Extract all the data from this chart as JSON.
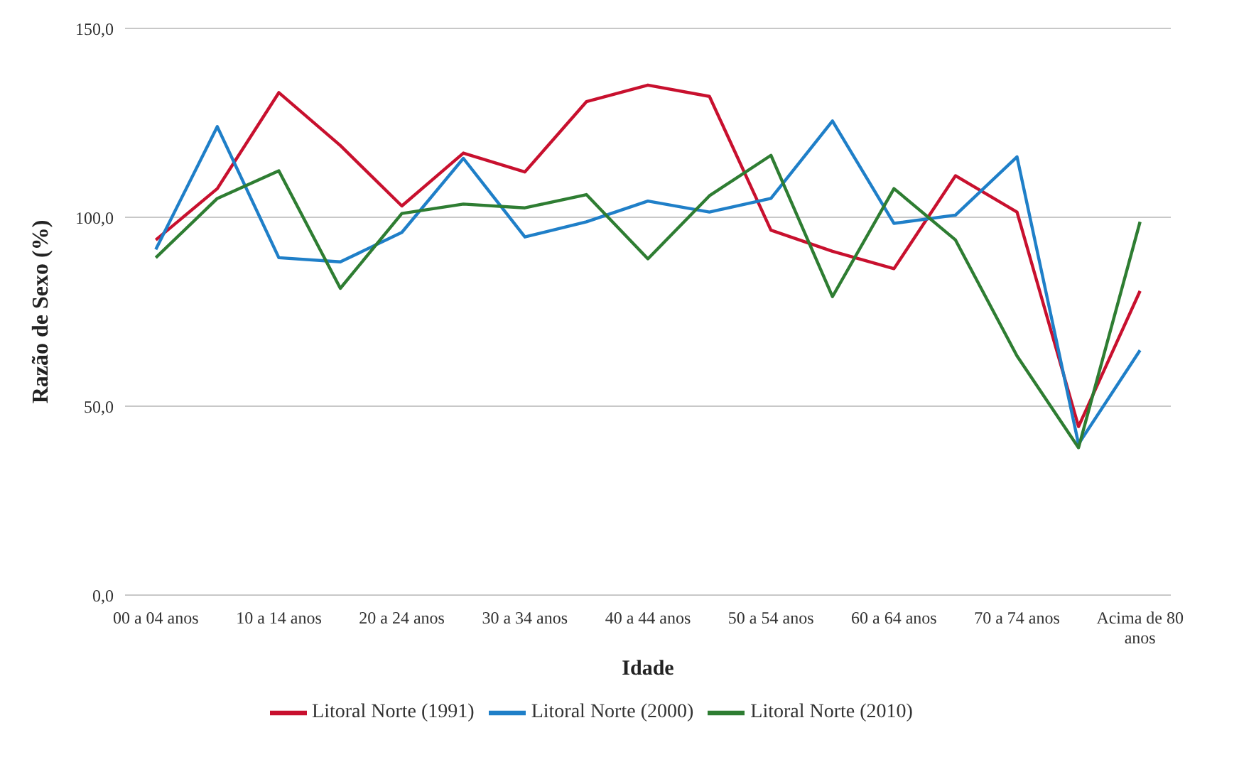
{
  "chart_data": {
    "type": "line",
    "xlabel": "Idade",
    "ylabel": "Razão de Sexo (%)",
    "categories": [
      "00 a 04 anos",
      null,
      "10 a 14 anos",
      null,
      "20 a 24 anos",
      null,
      "30 a 34 anos",
      null,
      "40 a 44 anos",
      null,
      "50 a 54 anos",
      null,
      "60 a 64 anos",
      null,
      "70 a 74 anos",
      null,
      "Acima de 80 anos"
    ],
    "series": [
      {
        "name": "Litoral Norte (1991)",
        "color": "#c8102e",
        "values": [
          94,
          107.6,
          133,
          119,
          103,
          117,
          112,
          130.6,
          135,
          132,
          96.6,
          91,
          86.4,
          111,
          101.4,
          44.6,
          80.5
        ]
      },
      {
        "name": "Litoral Norte (2000)",
        "color": "#1f7fc8",
        "values": [
          91.5,
          124,
          89.3,
          88.2,
          96,
          115.6,
          94.8,
          98.8,
          104.3,
          101.4,
          105,
          125.5,
          98.4,
          100.6,
          116,
          40,
          64.8
        ]
      },
      {
        "name": "Litoral Norte (2010)",
        "color": "#2e7d32",
        "values": [
          89.3,
          105,
          112.3,
          81.2,
          101,
          103.5,
          102.5,
          106,
          89,
          105.7,
          116.4,
          79,
          107.6,
          94,
          63.3,
          39,
          98.8
        ]
      }
    ],
    "ylim": [
      0,
      150
    ],
    "yticks": [
      {
        "value": 0,
        "label": "0,0"
      },
      {
        "value": 50,
        "label": "50,0"
      },
      {
        "value": 100,
        "label": "100,0"
      },
      {
        "value": 150,
        "label": "150,0"
      }
    ],
    "grid": "y",
    "legend": "bottom",
    "marker": "none",
    "line_style": "solid"
  }
}
